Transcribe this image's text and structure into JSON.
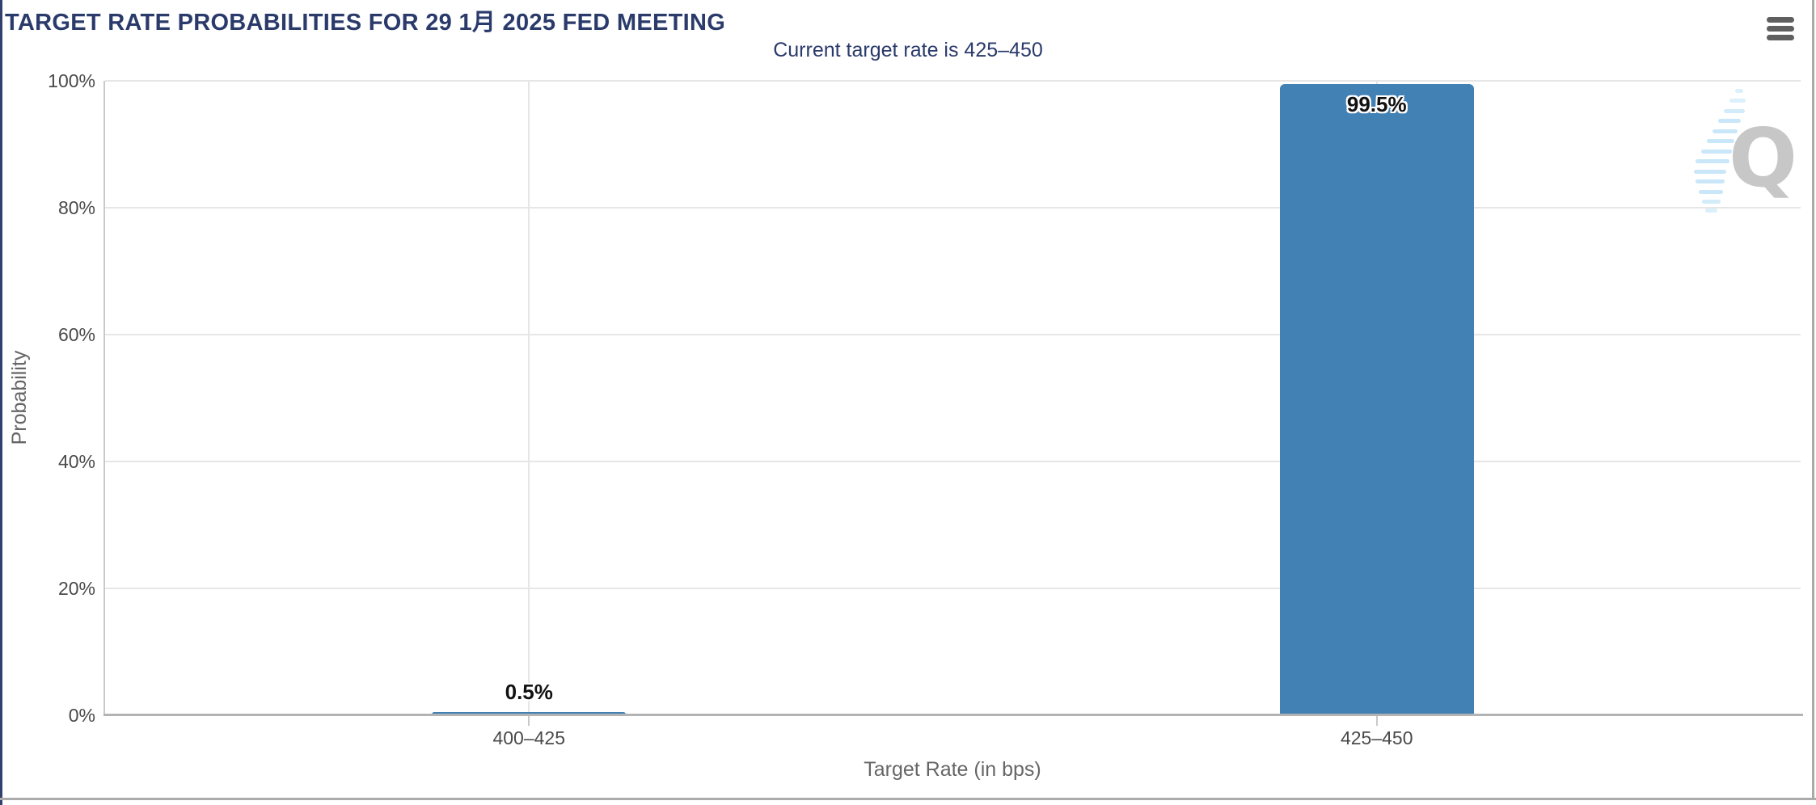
{
  "header": {
    "menu_icon": "hamburger-icon"
  },
  "chart_data": {
    "type": "bar",
    "title": "TARGET RATE PROBABILITIES FOR 29 1月 2025 FED MEETING",
    "subtitle": "Current target rate is 425–450",
    "categories": [
      "400–425",
      "425–450"
    ],
    "values": [
      0.5,
      99.5
    ],
    "bar_labels": [
      "0.5%",
      "99.5%"
    ],
    "xlabel": "Target Rate (in bps)",
    "ylabel": "Probability",
    "ylim": [
      0,
      100
    ],
    "ytick_values": [
      0,
      20,
      40,
      60,
      80,
      100
    ],
    "ytick_labels": [
      "0%",
      "20%",
      "40%",
      "60%",
      "80%",
      "100%"
    ],
    "grid": true,
    "legend": "none",
    "bar_color": "#4281b4"
  },
  "colors": {
    "title_text": "#2a3a6b",
    "subtitle_text": "#2a3a6b",
    "bar": "#4281b4",
    "axis_tick_text": "#4a4a4a",
    "axis_title_text": "#666666",
    "gridline": "#e6e6e6",
    "y_axis_line": "#c9c9c9",
    "x_axis_line": "#b3b3b3",
    "menu_icon": "#5f5f5f",
    "watermark_gray": "#c7c7c7",
    "watermark_blue": "#c9e7f8",
    "left_edge": "#31406f",
    "frame_border": "#ababab"
  },
  "watermark": {
    "letter": "Q"
  }
}
